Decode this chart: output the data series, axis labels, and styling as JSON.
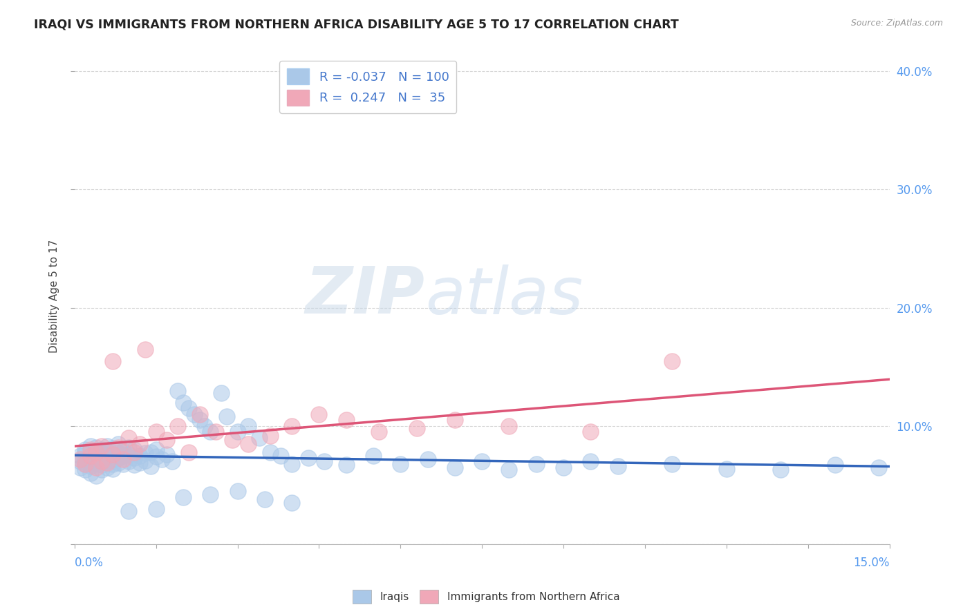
{
  "title": "IRAQI VS IMMIGRANTS FROM NORTHERN AFRICA DISABILITY AGE 5 TO 17 CORRELATION CHART",
  "source_text": "Source: ZipAtlas.com",
  "ylabel": "Disability Age 5 to 17",
  "xlim": [
    0.0,
    0.15
  ],
  "ylim": [
    0.0,
    0.42
  ],
  "yticks": [
    0.0,
    0.1,
    0.2,
    0.3,
    0.4
  ],
  "ytick_labels": [
    "",
    "10.0%",
    "20.0%",
    "30.0%",
    "40.0%"
  ],
  "xtick_labels": [
    "0.0%",
    "",
    "",
    "",
    "",
    "",
    "",
    "",
    "",
    "",
    "15.0%"
  ],
  "iraqis_R": -0.037,
  "iraqis_N": 100,
  "northafrica_R": 0.247,
  "northafrica_N": 35,
  "blue_color": "#aac8e8",
  "pink_color": "#f0a8b8",
  "blue_line_color": "#3366bb",
  "pink_line_color": "#dd5577",
  "legend_label_iraqis": "Iraqis",
  "legend_label_northafrica": "Immigrants from Northern Africa",
  "watermark_zip": "ZIP",
  "watermark_atlas": "atlas",
  "background_color": "#ffffff",
  "grid_color": "#cccccc",
  "iraqis_x": [
    0.001,
    0.001,
    0.001,
    0.002,
    0.002,
    0.002,
    0.002,
    0.002,
    0.003,
    0.003,
    0.003,
    0.003,
    0.003,
    0.004,
    0.004,
    0.004,
    0.004,
    0.004,
    0.004,
    0.005,
    0.005,
    0.005,
    0.005,
    0.005,
    0.005,
    0.005,
    0.006,
    0.006,
    0.006,
    0.006,
    0.006,
    0.007,
    0.007,
    0.007,
    0.007,
    0.007,
    0.008,
    0.008,
    0.008,
    0.008,
    0.009,
    0.009,
    0.009,
    0.01,
    0.01,
    0.01,
    0.011,
    0.011,
    0.011,
    0.012,
    0.012,
    0.013,
    0.013,
    0.014,
    0.014,
    0.015,
    0.015,
    0.016,
    0.017,
    0.018,
    0.019,
    0.02,
    0.021,
    0.022,
    0.023,
    0.024,
    0.025,
    0.027,
    0.028,
    0.03,
    0.032,
    0.034,
    0.036,
    0.038,
    0.04,
    0.043,
    0.046,
    0.05,
    0.055,
    0.06,
    0.065,
    0.07,
    0.075,
    0.08,
    0.085,
    0.09,
    0.095,
    0.1,
    0.11,
    0.12,
    0.13,
    0.14,
    0.148,
    0.03,
    0.02,
    0.025,
    0.035,
    0.04,
    0.015,
    0.01
  ],
  "iraqis_y": [
    0.07,
    0.075,
    0.065,
    0.072,
    0.068,
    0.08,
    0.063,
    0.077,
    0.071,
    0.083,
    0.066,
    0.074,
    0.06,
    0.069,
    0.076,
    0.082,
    0.058,
    0.073,
    0.079,
    0.067,
    0.075,
    0.071,
    0.063,
    0.08,
    0.069,
    0.077,
    0.074,
    0.065,
    0.083,
    0.07,
    0.078,
    0.072,
    0.068,
    0.076,
    0.064,
    0.081,
    0.069,
    0.077,
    0.073,
    0.085,
    0.068,
    0.075,
    0.079,
    0.07,
    0.076,
    0.082,
    0.067,
    0.073,
    0.08,
    0.075,
    0.069,
    0.077,
    0.071,
    0.078,
    0.066,
    0.074,
    0.08,
    0.072,
    0.076,
    0.07,
    0.13,
    0.12,
    0.115,
    0.11,
    0.105,
    0.1,
    0.095,
    0.128,
    0.108,
    0.095,
    0.1,
    0.09,
    0.078,
    0.075,
    0.068,
    0.073,
    0.07,
    0.067,
    0.075,
    0.068,
    0.072,
    0.065,
    0.07,
    0.063,
    0.068,
    0.065,
    0.07,
    0.066,
    0.068,
    0.064,
    0.063,
    0.067,
    0.065,
    0.045,
    0.04,
    0.042,
    0.038,
    0.035,
    0.03,
    0.028
  ],
  "northafrica_x": [
    0.001,
    0.002,
    0.003,
    0.003,
    0.004,
    0.004,
    0.005,
    0.005,
    0.006,
    0.007,
    0.007,
    0.008,
    0.009,
    0.01,
    0.011,
    0.012,
    0.013,
    0.015,
    0.017,
    0.019,
    0.021,
    0.023,
    0.026,
    0.029,
    0.032,
    0.036,
    0.04,
    0.045,
    0.05,
    0.056,
    0.063,
    0.07,
    0.08,
    0.095,
    0.11
  ],
  "northafrica_y": [
    0.072,
    0.068,
    0.075,
    0.08,
    0.065,
    0.078,
    0.07,
    0.083,
    0.069,
    0.076,
    0.155,
    0.082,
    0.072,
    0.09,
    0.078,
    0.085,
    0.165,
    0.095,
    0.088,
    0.1,
    0.078,
    0.11,
    0.095,
    0.088,
    0.085,
    0.092,
    0.1,
    0.11,
    0.105,
    0.095,
    0.098,
    0.105,
    0.1,
    0.095,
    0.155
  ]
}
